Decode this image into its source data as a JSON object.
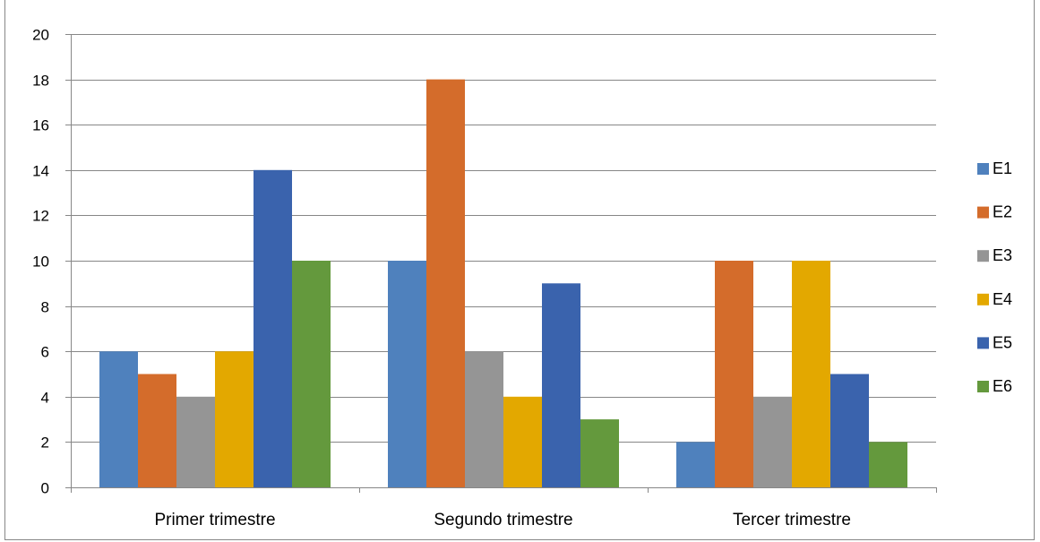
{
  "chart_data": {
    "type": "bar",
    "categories": [
      "Primer trimestre",
      "Segundo trimestre",
      "Tercer trimestre"
    ],
    "series": [
      {
        "name": "E1",
        "color": "#4f81bd",
        "values": [
          6,
          10,
          2
        ]
      },
      {
        "name": "E2",
        "color": "#d46c2b",
        "values": [
          5,
          18,
          10
        ]
      },
      {
        "name": "E3",
        "color": "#959595",
        "values": [
          4,
          6,
          4
        ]
      },
      {
        "name": "E4",
        "color": "#e3a800",
        "values": [
          6,
          4,
          10
        ]
      },
      {
        "name": "E5",
        "color": "#3a63ad",
        "values": [
          14,
          9,
          5
        ]
      },
      {
        "name": "E6",
        "color": "#64993d",
        "values": [
          10,
          3,
          2
        ]
      }
    ],
    "ylim": [
      0,
      20
    ],
    "yticks": [
      0,
      2,
      4,
      6,
      8,
      10,
      12,
      14,
      16,
      18,
      20
    ],
    "grid": true,
    "legend": "right"
  }
}
